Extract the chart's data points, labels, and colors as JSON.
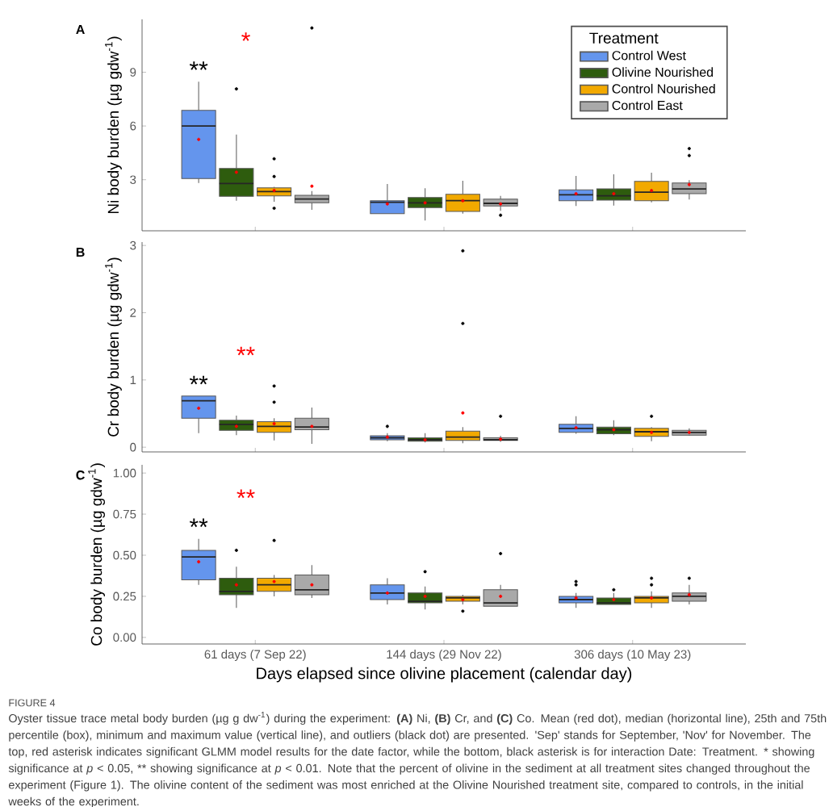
{
  "chart_data": [
    {
      "type": "box",
      "title": "A",
      "ylabel": "Ni body burden (µg gdw$^{-1}$)",
      "categories": [
        null,
        null,
        null
      ],
      "ylim": [
        0.15,
        11.95
      ],
      "yticks": [
        3,
        6,
        9
      ],
      "tick_labels": "y",
      "legend": "top right",
      "legend_title": "Treatment",
      "series": [
        {
          "name": "Control West",
          "color": "#6495ed",
          "boxes": [
            {
              "low": 2.82,
              "q1": 3.06,
              "median": 6.0,
              "q3": 6.87,
              "high": 8.47,
              "mean": 5.25
            },
            {
              "low": 1.11,
              "q1": 1.11,
              "median": 1.74,
              "q3": 1.83,
              "high": 2.76,
              "mean": 1.65
            },
            {
              "low": 1.53,
              "q1": 1.83,
              "median": 2.16,
              "q3": 2.43,
              "high": 3.21,
              "mean": 2.22
            }
          ]
        },
        {
          "name": "Olivine Nourished",
          "color": "#2e5c0e",
          "boxes": [
            {
              "low": 1.83,
              "q1": 2.07,
              "median": 2.79,
              "q3": 3.63,
              "high": 5.52,
              "mean": 3.42,
              "outliers": [
                8.07
              ]
            },
            {
              "low": 0.72,
              "q1": 1.44,
              "median": 1.71,
              "q3": 2.01,
              "high": 2.52,
              "mean": 1.71
            },
            {
              "low": 1.56,
              "q1": 1.86,
              "median": 2.1,
              "q3": 2.49,
              "high": 3.3,
              "mean": 2.22
            }
          ]
        },
        {
          "name": "Control Nourished",
          "color": "#f2a900",
          "boxes": [
            {
              "low": 1.77,
              "q1": 2.1,
              "median": 2.34,
              "q3": 2.55,
              "high": 2.6,
              "mean": 2.4,
              "outliers": [
                4.17,
                3.18,
                1.41
              ]
            },
            {
              "low": 1.11,
              "q1": 1.23,
              "median": 1.83,
              "q3": 2.19,
              "high": 2.94,
              "mean": 1.83
            },
            {
              "low": 1.74,
              "q1": 1.83,
              "median": 2.31,
              "q3": 2.91,
              "high": 3.39,
              "mean": 2.4
            }
          ]
        },
        {
          "name": "Control East",
          "color": "#a9a9a9",
          "boxes": [
            {
              "low": 1.32,
              "q1": 1.71,
              "median": 1.92,
              "q3": 2.13,
              "high": 2.37,
              "mean": 2.64,
              "outliers": [
                11.47
              ]
            },
            {
              "low": 1.26,
              "q1": 1.53,
              "median": 1.68,
              "q3": 1.92,
              "high": 2.1,
              "mean": 1.65,
              "outliers": [
                1.02
              ]
            },
            {
              "low": 1.89,
              "q1": 2.22,
              "median": 2.49,
              "q3": 2.82,
              "high": 2.97,
              "mean": 2.73,
              "outliers": [
                4.74,
                4.35
              ]
            }
          ]
        }
      ],
      "annotations": [
        "**",
        "*"
      ]
    },
    {
      "type": "box",
      "title": "B",
      "ylabel": "Cr body burden (µg gdw$^{-1}$)",
      "categories": [
        null,
        null,
        null
      ],
      "ylim": [
        -0.07,
        3.05
      ],
      "yticks": [
        0,
        1,
        2,
        3
      ],
      "tick_labels": "y",
      "series": [
        {
          "color": "#6495ed",
          "boxes": [
            {
              "low": 0.21,
              "q1": 0.43,
              "median": 0.69,
              "q3": 0.76,
              "high": 0.76,
              "mean": 0.58
            },
            {
              "low": 0.09,
              "q1": 0.11,
              "median": 0.14,
              "q3": 0.17,
              "high": 0.21,
              "mean": 0.15,
              "outliers": [
                0.31
              ]
            },
            {
              "low": 0.2,
              "q1": 0.22,
              "median": 0.28,
              "q3": 0.34,
              "high": 0.46,
              "mean": 0.29
            }
          ]
        },
        {
          "color": "#2e5c0e",
          "boxes": [
            {
              "low": 0.18,
              "q1": 0.25,
              "median": 0.34,
              "q3": 0.4,
              "high": 0.47,
              "mean": 0.31
            },
            {
              "low": 0.07,
              "q1": 0.09,
              "median": 0.11,
              "q3": 0.14,
              "high": 0.21,
              "mean": 0.11
            },
            {
              "low": 0.18,
              "q1": 0.2,
              "median": 0.26,
              "q3": 0.3,
              "high": 0.4,
              "mean": 0.26
            }
          ]
        },
        {
          "color": "#f2a900",
          "boxes": [
            {
              "low": 0.1,
              "q1": 0.22,
              "median": 0.31,
              "q3": 0.38,
              "high": 0.43,
              "mean": 0.35,
              "outliers": [
                0.91,
                0.67
              ]
            },
            {
              "low": 0.06,
              "q1": 0.1,
              "median": 0.15,
              "q3": 0.24,
              "high": 0.3,
              "mean": 0.51,
              "outliers": [
                2.92,
                1.84
              ]
            },
            {
              "low": 0.09,
              "q1": 0.16,
              "median": 0.23,
              "q3": 0.28,
              "high": 0.3,
              "mean": 0.22,
              "outliers": [
                0.46
              ]
            }
          ]
        },
        {
          "color": "#a9a9a9",
          "boxes": [
            {
              "low": 0.05,
              "q1": 0.26,
              "median": 0.3,
              "q3": 0.43,
              "high": 0.59,
              "mean": 0.31
            },
            {
              "low": 0.08,
              "q1": 0.1,
              "median": 0.11,
              "q3": 0.14,
              "high": 0.17,
              "mean": 0.12,
              "outliers": [
                0.46
              ]
            },
            {
              "low": 0.17,
              "q1": 0.18,
              "median": 0.22,
              "q3": 0.25,
              "high": 0.28,
              "mean": 0.22
            }
          ]
        }
      ],
      "annotations": [
        "**",
        "**"
      ]
    },
    {
      "type": "box",
      "title": "C",
      "ylabel": "Co body burden (µg gdw$^{-1}$)",
      "xlabel": "Days elapsed since olivine placement (calendar day)",
      "categories": [
        "61 days (7 Sep 22)",
        "144 days (29 Nov 22)",
        "306 days (10 May 23)"
      ],
      "ylim": [
        -0.04,
        1.05
      ],
      "yticks": [
        {
          "value": 0,
          "label": "0.00"
        },
        {
          "value": 0.25,
          "label": "0.25"
        },
        {
          "value": 0.5,
          "label": "0.50"
        },
        {
          "value": 0.75,
          "label": "0.75"
        },
        {
          "value": 1,
          "label": "1.00"
        }
      ],
      "series": [
        {
          "color": "#6495ed",
          "boxes": [
            {
              "low": 0.32,
              "q1": 0.35,
              "median": 0.49,
              "q3": 0.53,
              "high": 0.6,
              "mean": 0.46
            },
            {
              "low": 0.2,
              "q1": 0.23,
              "median": 0.27,
              "q3": 0.32,
              "high": 0.36,
              "mean": 0.27
            },
            {
              "low": 0.18,
              "q1": 0.21,
              "median": 0.23,
              "q3": 0.25,
              "high": 0.27,
              "mean": 0.24,
              "outliers": [
                0.34,
                0.32
              ]
            }
          ]
        },
        {
          "color": "#2e5c0e",
          "boxes": [
            {
              "low": 0.18,
              "q1": 0.26,
              "median": 0.28,
              "q3": 0.36,
              "high": 0.43,
              "mean": 0.32,
              "outliers": [
                0.53
              ]
            },
            {
              "low": 0.17,
              "q1": 0.21,
              "median": 0.22,
              "q3": 0.27,
              "high": 0.31,
              "mean": 0.25,
              "outliers": [
                0.4
              ]
            },
            {
              "low": 0.2,
              "q1": 0.2,
              "median": 0.21,
              "q3": 0.24,
              "high": 0.27,
              "mean": 0.23,
              "outliers": [
                0.29
              ]
            }
          ]
        },
        {
          "color": "#f2a900",
          "boxes": [
            {
              "low": 0.25,
              "q1": 0.28,
              "median": 0.32,
              "q3": 0.36,
              "high": 0.38,
              "mean": 0.34,
              "outliers": [
                0.59
              ]
            },
            {
              "low": 0.2,
              "q1": 0.22,
              "median": 0.24,
              "q3": 0.25,
              "high": 0.26,
              "mean": 0.23,
              "outliers": [
                0.16
              ]
            },
            {
              "low": 0.18,
              "q1": 0.21,
              "median": 0.24,
              "q3": 0.25,
              "high": 0.28,
              "mean": 0.24,
              "outliers": [
                0.36,
                0.32
              ]
            }
          ]
        },
        {
          "color": "#a9a9a9",
          "boxes": [
            {
              "low": 0.24,
              "q1": 0.26,
              "median": 0.29,
              "q3": 0.38,
              "high": 0.44,
              "mean": 0.32
            },
            {
              "low": 0.19,
              "q1": 0.19,
              "median": 0.21,
              "q3": 0.29,
              "high": 0.32,
              "mean": 0.25,
              "outliers": [
                0.51
              ]
            },
            {
              "low": 0.2,
              "q1": 0.22,
              "median": 0.25,
              "q3": 0.27,
              "high": 0.32,
              "mean": 0.26,
              "outliers": [
                0.36
              ]
            }
          ]
        }
      ],
      "annotations": [
        "**",
        "**"
      ]
    },
    {
      "type": "other",
      "annotations": [
        "FIGURE 4",
        "Oyster tissue trace metal body burden (µg g dw$^{-1}$) during the experiment: **(A)** Ni, **(B)** Cr, and **(C)** Co. Mean (red dot), median (horizontal line), 25th and 75th percentile (box), minimum and maximum value (vertical line), and outliers (black dot) are presented. 'Sep' stands for September, 'Nov' for November. The top, red asterisk indicates significant GLMM model results for the date factor, while the bottom, black asterisk is for interaction Date: Treatment. * showing significance at *p* < 0.05, ** showing significance at *p* < 0.01. Note that the percent of olivine in the sediment at all treatment sites changed throughout the experiment (Figure 1). The olivine content of the sediment was most enriched at the Olivine Nourished treatment site, compared to controls, in the initial weeks of the experiment."
      ]
    }
  ]
}
